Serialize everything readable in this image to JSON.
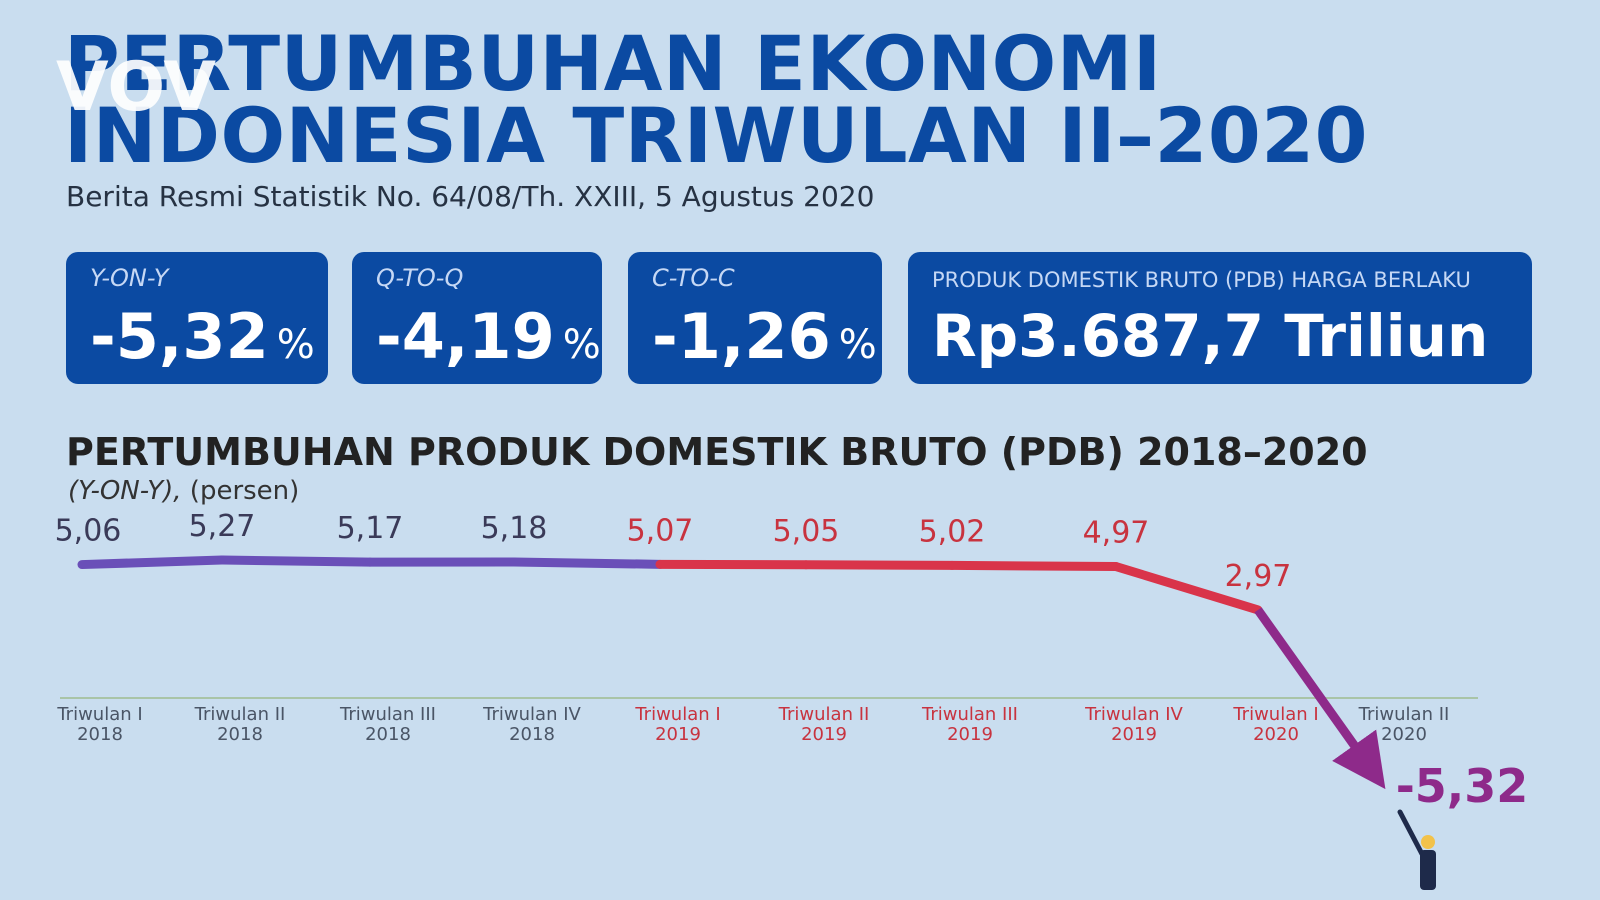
{
  "header": {
    "title_line1": "PERTUMBUHAN EKONOMI",
    "title_line2": "INDONESIA TRIWULAN II–2020",
    "subtitle": "Berita Resmi Statistik No. 64/08/Th. XXIII, 5 Agustus 2020",
    "logo_text": "VOV"
  },
  "cards": {
    "yoy": {
      "label": "Y-ON-Y",
      "value": "-5,32",
      "unit": "%"
    },
    "qtq": {
      "label": "Q-TO-Q",
      "value": "-4,19",
      "unit": "%"
    },
    "ctc": {
      "label": "C-TO-C",
      "value": "-1,26",
      "unit": "%"
    },
    "pdb": {
      "label": "PRODUK DOMESTIK BRUTO (PDB) HARGA BERLAKU",
      "value": "Rp3.687,7 Triliun"
    }
  },
  "colors": {
    "brand_blue": "#0b4aa2",
    "background": "#c9ddef",
    "line_2018": "#6a4fb8",
    "line_2019": "#d9344a",
    "line_2020": "#8e2a8a"
  },
  "chart_data": {
    "type": "line",
    "title": "PERTUMBUHAN PRODUK DOMESTIK BRUTO (PDB) 2018–2020",
    "subtitle_italic": "(Y-ON-Y),",
    "subtitle_rest": "(persen)",
    "categories": [
      [
        "Triwulan I",
        "2018"
      ],
      [
        "Triwulan II",
        "2018"
      ],
      [
        "Triwulan III",
        "2018"
      ],
      [
        "Triwulan IV",
        "2018"
      ],
      [
        "Triwulan I",
        "2019"
      ],
      [
        "Triwulan II",
        "2019"
      ],
      [
        "Triwulan III",
        "2019"
      ],
      [
        "Triwulan IV",
        "2019"
      ],
      [
        "Triwulan I",
        "2020"
      ],
      [
        "Triwulan II",
        "2020"
      ]
    ],
    "values": [
      5.06,
      5.27,
      5.17,
      5.18,
      5.07,
      5.05,
      5.02,
      4.97,
      2.97,
      -5.32
    ],
    "value_labels": [
      "5,06",
      "5,27",
      "5,17",
      "5,18",
      "5,07",
      "5,05",
      "5,02",
      "4,97",
      "2,97",
      "-5,32"
    ],
    "ylim": [
      -5.32,
      5.27
    ],
    "grid": false,
    "legend": false
  }
}
